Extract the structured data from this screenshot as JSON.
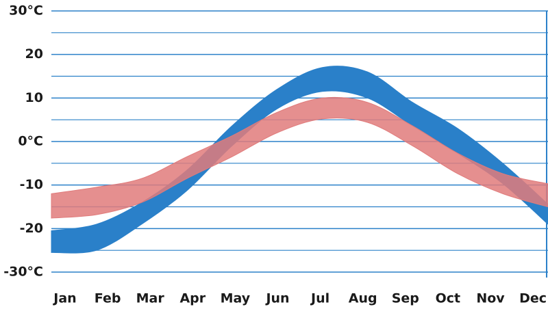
{
  "chart_data": {
    "type": "area-range",
    "categories": [
      "Jan",
      "Feb",
      "Mar",
      "Apr",
      "May",
      "Jun",
      "Jul",
      "Aug",
      "Sep",
      "Oct",
      "Nov",
      "Dec"
    ],
    "series": [
      {
        "color": "#2a80c9",
        "high": [
          -20.5,
          -19,
          -14,
          -6.6,
          3.6,
          12,
          17,
          16,
          9,
          3,
          -5,
          -14.4
        ],
        "low": [
          -25.5,
          -25,
          -19,
          -11.3,
          -1,
          7.5,
          11.5,
          10,
          3.6,
          -2.7,
          -9.7,
          -19
        ]
      },
      {
        "color": "#e07b7b",
        "high": [
          -12,
          -10.5,
          -8.5,
          -3.5,
          1.3,
          6.7,
          10,
          9,
          3.6,
          -2.7,
          -7.4,
          -9.7
        ],
        "low": [
          -17.6,
          -16.8,
          -14,
          -8.5,
          -3.5,
          2,
          5.2,
          4.4,
          -1,
          -7.4,
          -12,
          -15
        ]
      }
    ],
    "ylim": [
      -30,
      30
    ],
    "yticks": [
      {
        "value": 30,
        "label": "30°C"
      },
      20,
      10,
      {
        "value": 0,
        "label": "0°C"
      },
      -10,
      -20,
      {
        "value": -30,
        "label": "-30°C"
      }
    ],
    "minor_yticks": [
      25,
      15,
      5,
      -5,
      -15,
      -25
    ],
    "grid": true
  }
}
